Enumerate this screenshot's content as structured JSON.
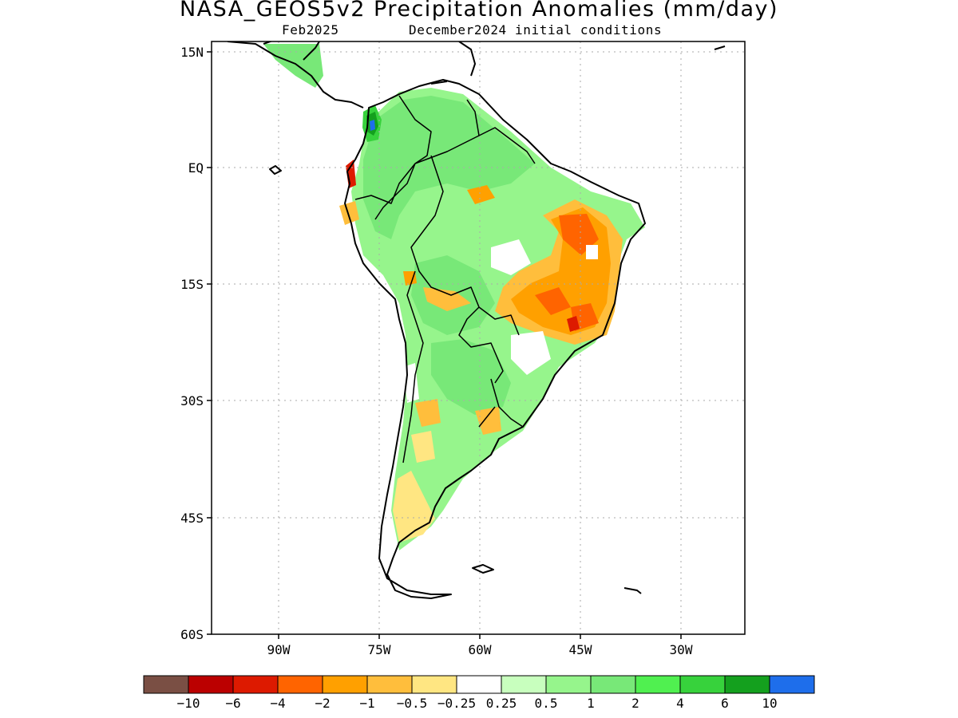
{
  "title": "NASA_GEOS5v2 Precipitation Anomalies (mm/day)",
  "subtitle_left": "Feb2025",
  "subtitle_right": "December2024 initial conditions",
  "lat_ticks": [
    "15N",
    "EQ",
    "15S",
    "30S",
    "45S",
    "60S"
  ],
  "lon_ticks": [
    "90W",
    "75W",
    "60W",
    "45W",
    "30W"
  ],
  "map_extent": {
    "lon_min": -100,
    "lon_max": -20,
    "lat_min": -60,
    "lat_max": 15
  },
  "colorbar": {
    "labels": [
      "−10",
      "−6",
      "−4",
      "−2",
      "−1",
      "−0.5",
      "−0.25",
      "0.25",
      "0.5",
      "1",
      "2",
      "4",
      "6",
      "10"
    ],
    "colors": [
      "#7a4f44",
      "#bb0000",
      "#dd1a00",
      "#ff6400",
      "#ffa000",
      "#ffbe3c",
      "#ffe682",
      "#ffffff",
      "#c8ffbe",
      "#96f58c",
      "#78e878",
      "#50f050",
      "#37d23c",
      "#14a01e",
      "#1e6eeb"
    ]
  },
  "anomaly_regions": [
    {
      "name": "central-eastern-brazil",
      "category": "-1 to -2 and -2 to -4"
    },
    {
      "name": "northern-south-america",
      "category": "0.5 to 2"
    },
    {
      "name": "colombia-andes",
      "category": "4 to 10"
    },
    {
      "name": "southern-andes-patagonia",
      "category": "-0.25 to -1"
    }
  ]
}
